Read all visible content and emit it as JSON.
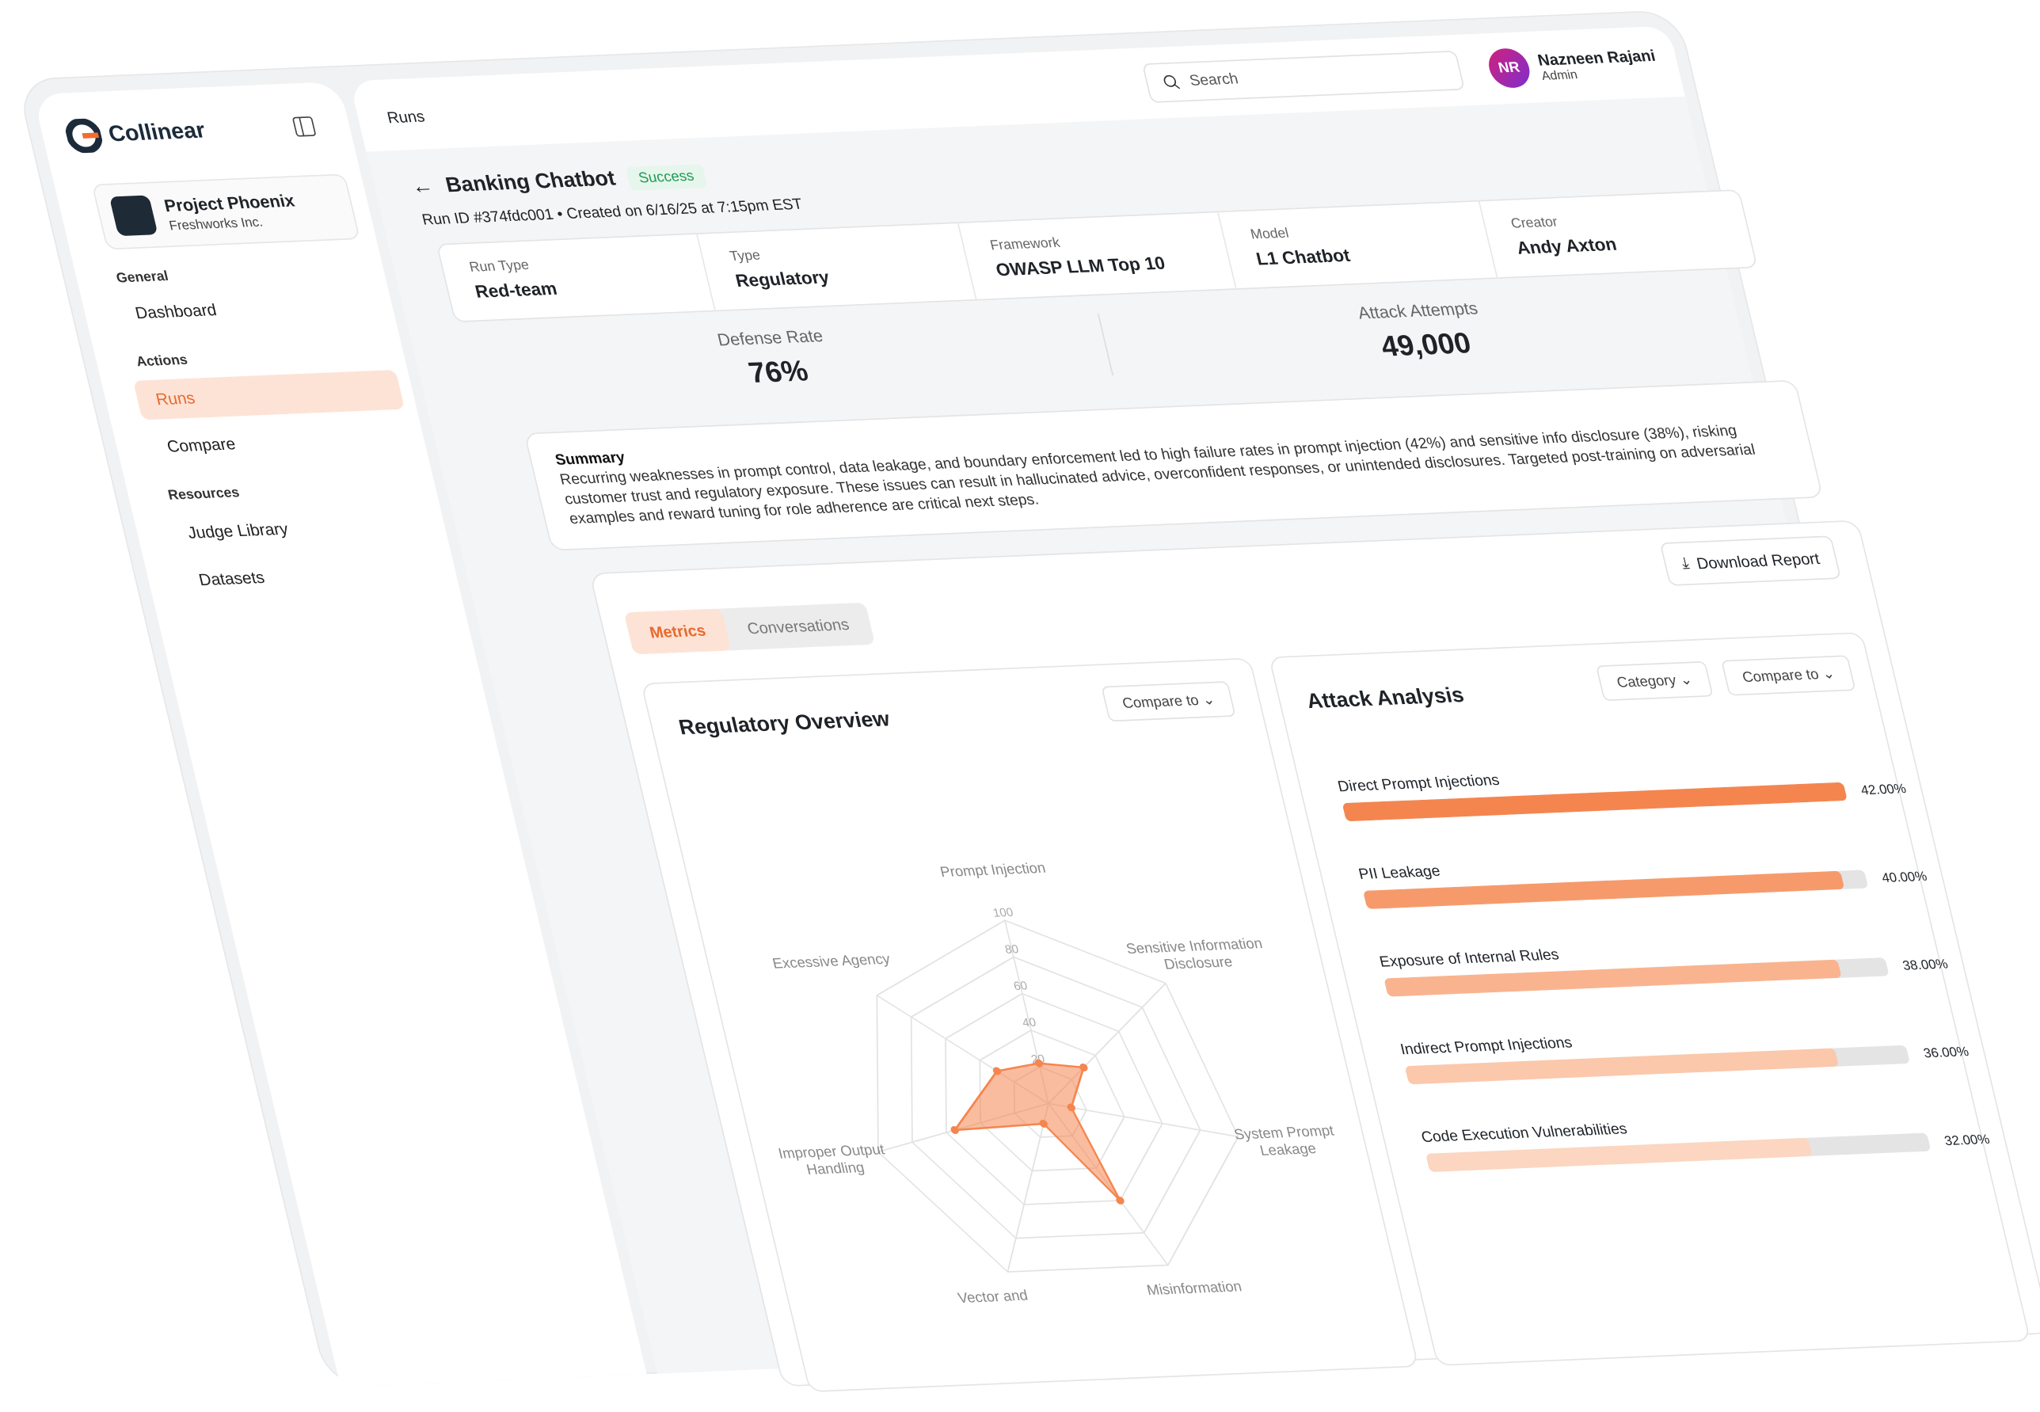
{
  "sidebar": {
    "brand": "Collinear",
    "project": {
      "name": "Project Phoenix",
      "org": "Freshworks Inc."
    },
    "sections": [
      {
        "title": "General",
        "items": [
          "Dashboard"
        ]
      },
      {
        "title": "Actions",
        "items": [
          "Runs",
          "Compare"
        ]
      },
      {
        "title": "Resources",
        "items": [
          "Judge Library",
          "Datasets"
        ]
      }
    ]
  },
  "header": {
    "breadcrumb": "Runs",
    "search": "Search",
    "user": {
      "initials": "NR",
      "name": "Nazneen Rajani",
      "role": "Admin"
    }
  },
  "run": {
    "title": "Banking Chatbot",
    "status": "Success",
    "meta": "Run ID #374fdc001 • Created on 6/16/25 at 7:15pm EST",
    "fields": [
      {
        "label": "Run Type",
        "value": "Red-team"
      },
      {
        "label": "Type",
        "value": "Regulatory"
      },
      {
        "label": "Framework",
        "value": "OWASP LLM Top 10"
      },
      {
        "label": "Model",
        "value": "L1 Chatbot"
      },
      {
        "label": "Creator",
        "value": "Andy Axton"
      }
    ]
  },
  "stats": [
    {
      "label": "Defense Rate",
      "value": "76%"
    },
    {
      "label": "Attack Attempts",
      "value": "49,000"
    }
  ],
  "summary": {
    "title": "Summary",
    "text": "Recurring weaknesses in prompt control, data leakage, and boundary enforcement led to high failure rates in prompt injection (42%) and sensitive info disclosure (38%), risking customer trust and regulatory exposure. These issues can result in hallucinated advice, overconfident responses, or unintended disclosures. Targeted post-training on adversarial examples and reward tuning for role adherence are critical next steps."
  },
  "tabs": [
    "Metrics",
    "Conversations"
  ],
  "download": "Download Report",
  "chart_data": [
    {
      "type": "radar",
      "title": "Regulatory Overview",
      "control": "Compare to",
      "categories": [
        "Prompt Injection",
        "Sensitive Information Disclosure",
        "System Prompt Leakage",
        "Misinformation",
        "Vector and",
        "Improper Output Handling",
        "Excessive Agency"
      ],
      "series": [
        {
          "color": "#f5854f",
          "values": [
            22,
            30,
            12,
            60,
            12,
            55,
            30
          ]
        }
      ],
      "rlim": [
        0,
        100
      ],
      "rticks": [
        20,
        40,
        60,
        80,
        100
      ]
    },
    {
      "type": "bar",
      "title": "Attack Analysis",
      "controls": [
        "Category",
        "Compare to"
      ],
      "categories": [
        "Direct Prompt Injections",
        "PII Leakage",
        "Exposure of Internal Rules",
        "Indirect Prompt Injections",
        "Code Execution Vulnerabilities"
      ],
      "values": [
        42,
        40,
        38,
        36,
        32
      ],
      "value_labels": [
        "42.00%",
        "40.00%",
        "38.00%",
        "36.00%",
        "32.00%"
      ],
      "colors": [
        "#f5854f",
        "#f79a6b",
        "#f9b48f",
        "#fbc8ab",
        "#fcd6c0"
      ]
    }
  ]
}
